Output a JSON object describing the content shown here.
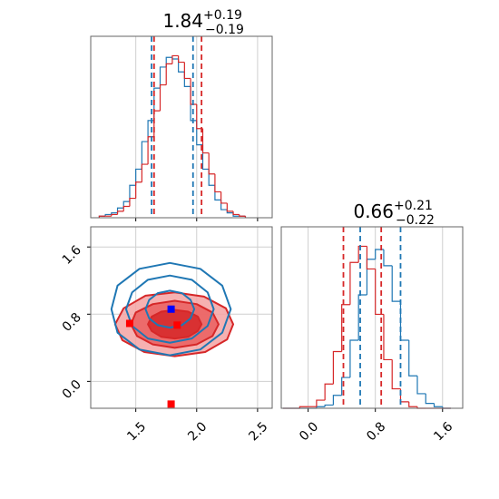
{
  "chart_data": [
    {
      "type": "histogram",
      "title_main": "1.84",
      "title_sup": "+0.19",
      "title_sub": "−0.19",
      "bins": [
        1.2,
        1.25,
        1.3,
        1.35,
        1.4,
        1.45,
        1.5,
        1.55,
        1.6,
        1.65,
        1.7,
        1.75,
        1.8,
        1.85,
        1.9,
        1.95,
        2.0,
        2.05,
        2.1,
        2.15,
        2.2,
        2.25,
        2.3,
        2.35,
        2.4
      ],
      "series": [
        {
          "color": "#1f77b4",
          "values": [
            1,
            2,
            3,
            6,
            10,
            20,
            30,
            47,
            60,
            80,
            93,
            99,
            98,
            90,
            81,
            60,
            45,
            30,
            20,
            11,
            5,
            3,
            1,
            1
          ]
        },
        {
          "color": "#d62728",
          "values": [
            1,
            1,
            2,
            4,
            7,
            12,
            22,
            33,
            50,
            66,
            82,
            95,
            100,
            96,
            86,
            70,
            55,
            40,
            27,
            16,
            9,
            4,
            2,
            1
          ]
        }
      ],
      "quantiles": [
        {
          "color": "#1f77b4",
          "values": [
            1.63,
            1.97
          ]
        },
        {
          "color": "#d62728",
          "values": [
            1.65,
            2.04
          ]
        }
      ],
      "xlim": [
        1.13,
        2.62
      ],
      "ylim": [
        0,
        112
      ],
      "xticks": [
        1.5,
        2,
        2.5
      ],
      "grid": true
    },
    {
      "type": "contour",
      "contours": [
        {
          "color": "#d62728",
          "fill": "#f4a3a3",
          "x": [
            2.3,
            2.24,
            2.06,
            1.82,
            1.58,
            1.4,
            1.33,
            1.39,
            1.57,
            1.82,
            2.07,
            2.25
          ],
          "y": [
            0.68,
            0.87,
            1.01,
            1.06,
            1.02,
            0.87,
            0.68,
            0.49,
            0.35,
            0.3,
            0.35,
            0.5
          ]
        },
        {
          "color": "#d62728",
          "fill": "#ea5f5f",
          "x": [
            2.18,
            2.13,
            2.0,
            1.82,
            1.64,
            1.5,
            1.46,
            1.51,
            1.64,
            1.82,
            2.0,
            2.13
          ],
          "y": [
            0.68,
            0.82,
            0.92,
            0.96,
            0.92,
            0.82,
            0.68,
            0.54,
            0.44,
            0.4,
            0.44,
            0.54
          ]
        },
        {
          "color": "#d62728",
          "fill": "#d62728",
          "x": [
            2.04,
            2.01,
            1.93,
            1.82,
            1.71,
            1.63,
            1.6,
            1.63,
            1.71,
            1.82,
            1.93,
            2.01
          ],
          "y": [
            0.68,
            0.77,
            0.83,
            0.85,
            0.83,
            0.77,
            0.68,
            0.6,
            0.53,
            0.51,
            0.53,
            0.6
          ]
        },
        {
          "color": "#1f77b4",
          "x": [
            2.28,
            2.21,
            2.03,
            1.78,
            1.53,
            1.35,
            1.3,
            1.35,
            1.53,
            1.78,
            2.03,
            2.21
          ],
          "y": [
            0.86,
            1.14,
            1.34,
            1.41,
            1.34,
            1.14,
            0.86,
            0.58,
            0.38,
            0.31,
            0.38,
            0.58
          ]
        },
        {
          "color": "#1f77b4",
          "x": [
            2.14,
            2.09,
            1.96,
            1.78,
            1.6,
            1.47,
            1.42,
            1.47,
            1.6,
            1.78,
            1.96,
            2.09
          ],
          "y": [
            0.86,
            1.06,
            1.21,
            1.26,
            1.21,
            1.06,
            0.86,
            0.66,
            0.51,
            0.46,
            0.51,
            0.66
          ]
        },
        {
          "color": "#1f77b4",
          "x": [
            1.98,
            1.95,
            1.88,
            1.78,
            1.68,
            1.61,
            1.58,
            1.61,
            1.68,
            1.78,
            1.88,
            1.95
          ],
          "y": [
            0.86,
            0.97,
            1.05,
            1.08,
            1.05,
            0.97,
            0.86,
            0.75,
            0.67,
            0.64,
            0.67,
            0.75
          ]
        }
      ],
      "markers": [
        {
          "color": "#0000ff",
          "x": 1.79,
          "y": 0.86
        },
        {
          "color": "#ff0000",
          "x": 1.45,
          "y": 0.69
        },
        {
          "color": "#ff0000",
          "x": 1.84,
          "y": 0.67
        },
        {
          "color": "#ff0000",
          "x": 1.79,
          "y": -0.27
        }
      ],
      "xlim": [
        1.13,
        2.62
      ],
      "ylim": [
        -0.32,
        1.84
      ],
      "xticks": [
        1.5,
        {
          "value": 2,
          "label": "2.0"
        },
        2.5
      ],
      "yticks": [
        {
          "value": 0,
          "label": "0.0"
        },
        0.8,
        1.6
      ],
      "grid": true
    },
    {
      "type": "histogram",
      "title_main": "0.66",
      "title_sup": "+0.21",
      "title_sub": "−0.22",
      "bins": [
        -0.3,
        -0.2,
        -0.1,
        0,
        0.1,
        0.2,
        0.3,
        0.4,
        0.5,
        0.6,
        0.7,
        0.8,
        0.9,
        1,
        1.1,
        1.2,
        1.3,
        1.4,
        1.5,
        1.6,
        1.7
      ],
      "series": [
        {
          "color": "#1f77b4",
          "values": [
            0,
            0,
            0,
            0,
            1,
            2,
            8,
            19,
            42,
            70,
            92,
            98,
            88,
            66,
            42,
            20,
            9,
            3,
            1,
            0
          ]
        },
        {
          "color": "#d62728",
          "values": [
            0,
            0,
            1,
            1,
            5,
            15,
            35,
            64,
            90,
            100,
            86,
            58,
            30,
            12,
            4,
            1,
            0,
            0,
            0,
            0
          ]
        }
      ],
      "quantiles": [
        {
          "color": "#d62728",
          "values": [
            0.42,
            0.87
          ]
        },
        {
          "color": "#1f77b4",
          "values": [
            0.62,
            1.1
          ]
        }
      ],
      "xlim": [
        -0.32,
        1.84
      ],
      "ylim": [
        0,
        112
      ],
      "xticks": [
        {
          "value": 0,
          "label": "0.0"
        },
        0.8,
        1.6
      ],
      "grid": true
    }
  ]
}
